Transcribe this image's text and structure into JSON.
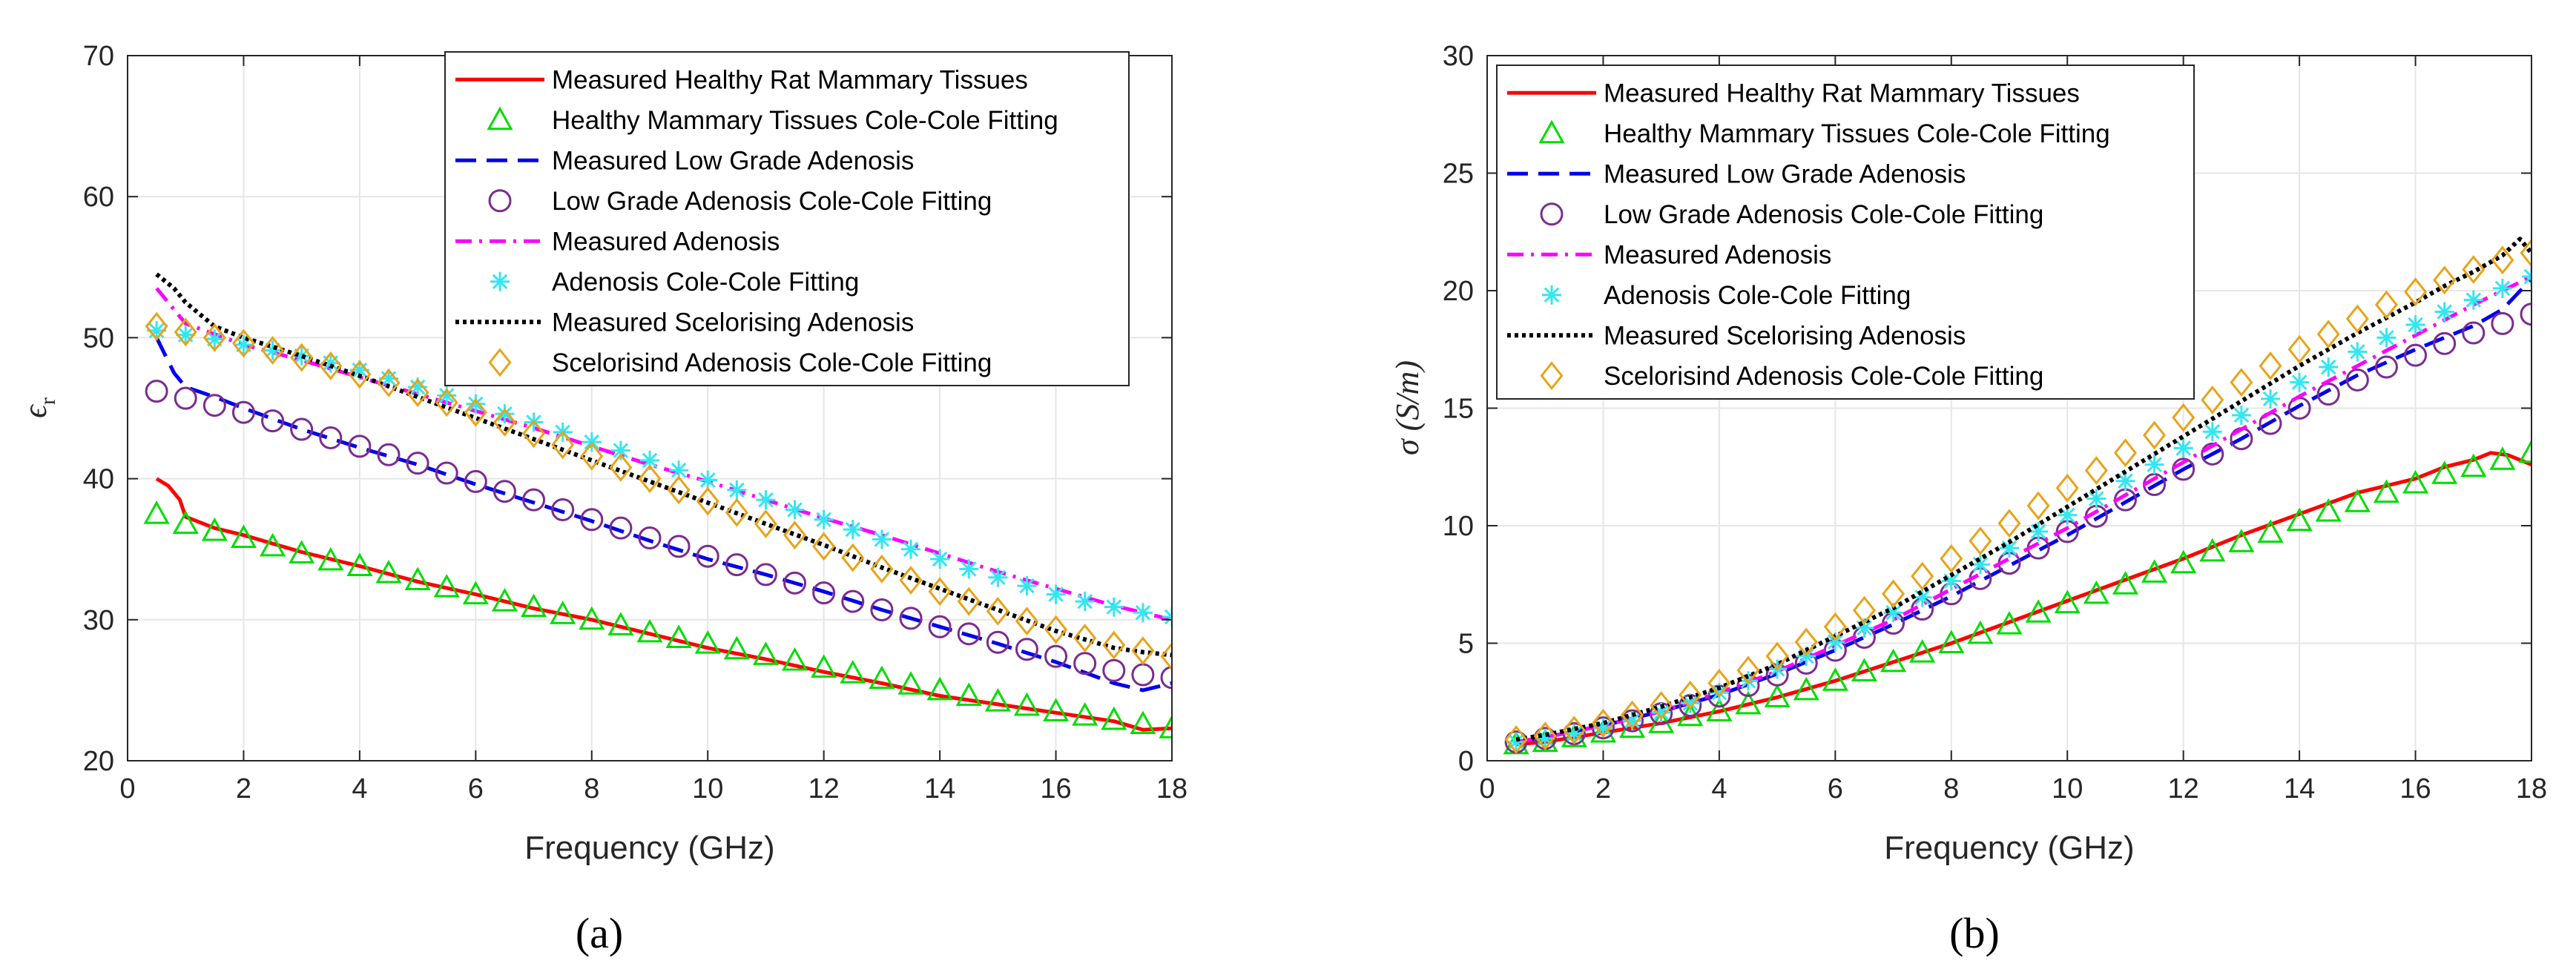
{
  "chart_data": [
    {
      "type": "line",
      "panel_label": "(a)",
      "xlabel": "Frequency (GHz)",
      "ylabel": "ϵ",
      "ylabel_sub": "r",
      "xlim": [
        0,
        18
      ],
      "ylim": [
        20,
        70
      ],
      "xticks": [
        0,
        2,
        4,
        6,
        8,
        10,
        12,
        14,
        16,
        18
      ],
      "yticks": [
        20,
        30,
        40,
        50,
        60,
        70
      ],
      "grid": true,
      "legend_position": "top-right",
      "series": [
        {
          "name": "Measured Healthy Rat Mammary Tissues",
          "style": "solid",
          "color": "#ff0000",
          "x": [
            0.5,
            0.7,
            0.9,
            1,
            1.5,
            2,
            3,
            4,
            5,
            6,
            7,
            8,
            9,
            10,
            11,
            12,
            13,
            14,
            15,
            16,
            17,
            17.5,
            18
          ],
          "values": [
            40,
            39.5,
            38.5,
            37.3,
            36.5,
            36,
            34.8,
            33.8,
            32.7,
            31.8,
            30.8,
            30,
            29,
            28,
            27.2,
            26.3,
            25.5,
            24.6,
            24,
            23.4,
            22.8,
            22.2,
            22.3
          ]
        },
        {
          "name": "Healthy Mammary Tissues Cole-Cole Fitting",
          "style": "triangle",
          "color": "#00dd00",
          "x": [
            0.5,
            1,
            1.5,
            2,
            2.5,
            3,
            3.5,
            4,
            4.5,
            5,
            5.5,
            6,
            6.5,
            7,
            7.5,
            8,
            8.5,
            9,
            9.5,
            10,
            10.5,
            11,
            11.5,
            12,
            12.5,
            13,
            13.5,
            14,
            14.5,
            15,
            15.5,
            16,
            16.5,
            17,
            17.5,
            18
          ],
          "values": [
            37.5,
            36.8,
            36.3,
            35.8,
            35.2,
            34.7,
            34.2,
            33.8,
            33.3,
            32.8,
            32.3,
            31.8,
            31.3,
            30.9,
            30.4,
            30,
            29.6,
            29.1,
            28.7,
            28.3,
            27.9,
            27.5,
            27.1,
            26.6,
            26.2,
            25.8,
            25.4,
            25,
            24.6,
            24.2,
            23.9,
            23.5,
            23.2,
            22.9,
            22.6,
            22.3
          ]
        },
        {
          "name": "Measured  Low Grade Adenosis",
          "style": "dashed",
          "color": "#0000ee",
          "x": [
            0.5,
            0.8,
            1,
            1.5,
            2,
            3,
            4,
            5,
            6,
            7,
            8,
            9,
            10,
            11,
            12,
            13,
            14,
            15,
            16,
            17,
            17.5,
            18
          ],
          "values": [
            50,
            47.5,
            46.5,
            45.8,
            45,
            43.5,
            42.2,
            41,
            39.6,
            38.3,
            37,
            35.6,
            34.3,
            33.2,
            32,
            30.7,
            29.5,
            28.3,
            27,
            25.5,
            25,
            25.5
          ]
        },
        {
          "name": "Low Grade Adenosis Cole-Cole Fitting",
          "style": "circle",
          "color": "#7b2c8f",
          "x": [
            0.5,
            1,
            1.5,
            2,
            2.5,
            3,
            3.5,
            4,
            4.5,
            5,
            5.5,
            6,
            6.5,
            7,
            7.5,
            8,
            8.5,
            9,
            9.5,
            10,
            10.5,
            11,
            11.5,
            12,
            12.5,
            13,
            13.5,
            14,
            14.5,
            15,
            15.5,
            16,
            16.5,
            17,
            17.5,
            18
          ],
          "values": [
            46.2,
            45.7,
            45.2,
            44.7,
            44.1,
            43.5,
            42.9,
            42.3,
            41.7,
            41.1,
            40.4,
            39.8,
            39.1,
            38.5,
            37.8,
            37.1,
            36.5,
            35.8,
            35.2,
            34.5,
            33.9,
            33.2,
            32.6,
            31.9,
            31.3,
            30.7,
            30.1,
            29.5,
            29,
            28.4,
            27.9,
            27.4,
            26.9,
            26.4,
            26.1,
            25.9
          ]
        },
        {
          "name": "Measured Adenosis",
          "style": "dashdot",
          "color": "#ff00ff",
          "x": [
            0.5,
            0.8,
            1,
            2,
            3,
            4,
            5,
            6,
            7,
            8,
            9,
            10,
            11,
            12,
            13,
            14,
            15,
            16,
            17,
            18
          ],
          "values": [
            53.5,
            52,
            51,
            49.5,
            48.4,
            47.2,
            46,
            44.8,
            43.6,
            42.3,
            41,
            39.8,
            38.5,
            37.2,
            36,
            34.7,
            33.4,
            32.2,
            31,
            30
          ]
        },
        {
          "name": "Adenosis Cole-Cole Fitting",
          "style": "asterisk",
          "color": "#33e6f0",
          "x": [
            0.5,
            1,
            1.5,
            2,
            2.5,
            3,
            3.5,
            4,
            4.5,
            5,
            5.5,
            6,
            6.5,
            7,
            7.5,
            8,
            8.5,
            9,
            9.5,
            10,
            10.5,
            11,
            11.5,
            12,
            12.5,
            13,
            13.5,
            14,
            14.5,
            15,
            15.5,
            16,
            16.5,
            17,
            17.5,
            18
          ],
          "values": [
            50.5,
            50.2,
            49.9,
            49.5,
            49.1,
            48.7,
            48.2,
            47.7,
            47.1,
            46.5,
            45.9,
            45.3,
            44.6,
            44,
            43.3,
            42.6,
            42,
            41.3,
            40.6,
            39.9,
            39.2,
            38.5,
            37.8,
            37.1,
            36.4,
            35.7,
            35,
            34.3,
            33.6,
            33,
            32.4,
            31.8,
            31.3,
            30.9,
            30.5,
            30.2
          ]
        },
        {
          "name": "Measured Scelorising Adenosis",
          "style": "dotted",
          "color": "#000000",
          "x": [
            0.5,
            0.8,
            1,
            1.5,
            2,
            3,
            4,
            5,
            6,
            7,
            8,
            9,
            10,
            11,
            12,
            13,
            14,
            15,
            16,
            17,
            17.5,
            18
          ],
          "values": [
            54.5,
            53.5,
            52.5,
            50.8,
            50,
            48.7,
            47.3,
            45.8,
            44.3,
            42.8,
            41.3,
            39.8,
            38.3,
            36.8,
            35.3,
            33.7,
            32.2,
            30.7,
            29.2,
            28,
            27.7,
            27.5
          ]
        },
        {
          "name": "Scelorisind Adenosis Cole-Cole Fitting",
          "style": "diamond",
          "color": "#e8a317",
          "x": [
            0.5,
            1,
            1.5,
            2,
            2.5,
            3,
            3.5,
            4,
            4.5,
            5,
            5.5,
            6,
            6.5,
            7,
            7.5,
            8,
            8.5,
            9,
            9.5,
            10,
            10.5,
            11,
            11.5,
            12,
            12.5,
            13,
            13.5,
            14,
            14.5,
            15,
            15.5,
            16,
            16.5,
            17,
            17.5,
            18
          ],
          "values": [
            50.8,
            50.4,
            50,
            49.6,
            49.1,
            48.6,
            48,
            47.4,
            46.8,
            46.1,
            45.4,
            44.7,
            44,
            43.2,
            42.4,
            41.6,
            40.8,
            40,
            39.2,
            38.4,
            37.6,
            36.8,
            36,
            35.2,
            34.4,
            33.6,
            32.8,
            32,
            31.3,
            30.6,
            29.9,
            29.3,
            28.7,
            28.2,
            27.8,
            27.4
          ]
        }
      ]
    },
    {
      "type": "line",
      "panel_label": "(b)",
      "xlabel": "Frequency (GHz)",
      "ylabel": "σ (S/m)",
      "xlim": [
        0,
        18
      ],
      "ylim": [
        0,
        30
      ],
      "xticks": [
        0,
        2,
        4,
        6,
        8,
        10,
        12,
        14,
        16,
        18
      ],
      "yticks": [
        0,
        5,
        10,
        15,
        20,
        25,
        30
      ],
      "grid": true,
      "legend_position": "top-left",
      "series": [
        {
          "name": "Measured Healthy Rat Mammary Tissues",
          "style": "solid",
          "color": "#ff0000",
          "x": [
            0.5,
            1,
            2,
            3,
            4,
            5,
            6,
            7,
            8,
            9,
            10,
            11,
            12,
            13,
            14,
            15,
            16,
            16.5,
            17,
            17.3,
            17.6,
            18
          ],
          "values": [
            0.7,
            0.8,
            1.2,
            1.6,
            2.1,
            2.7,
            3.4,
            4.2,
            5,
            5.9,
            6.8,
            7.7,
            8.6,
            9.6,
            10.5,
            11.4,
            12,
            12.5,
            12.8,
            13.1,
            13,
            12.6
          ]
        },
        {
          "name": "Healthy Mammary Tissues Cole-Cole Fitting",
          "style": "triangle",
          "color": "#00dd00",
          "x": [
            0.5,
            1,
            1.5,
            2,
            2.5,
            3,
            3.5,
            4,
            4.5,
            5,
            5.5,
            6,
            6.5,
            7,
            7.5,
            8,
            8.5,
            9,
            9.5,
            10,
            10.5,
            11,
            11.5,
            12,
            12.5,
            13,
            13.5,
            14,
            14.5,
            15,
            15.5,
            16,
            16.5,
            17,
            17.5,
            18
          ],
          "values": [
            0.7,
            0.8,
            1,
            1.2,
            1.4,
            1.6,
            1.9,
            2.1,
            2.4,
            2.7,
            3,
            3.4,
            3.8,
            4.2,
            4.6,
            5,
            5.4,
            5.8,
            6.3,
            6.7,
            7.1,
            7.5,
            8,
            8.4,
            8.9,
            9.3,
            9.7,
            10.2,
            10.6,
            11,
            11.4,
            11.8,
            12.2,
            12.5,
            12.8,
            13.1
          ]
        },
        {
          "name": "Measured  Low Grade Adenosis",
          "style": "dashed",
          "color": "#0000ee",
          "x": [
            0.5,
            1,
            2,
            3,
            4,
            5,
            6,
            7,
            8,
            9,
            10,
            11,
            12,
            13,
            14,
            15,
            16,
            16.5,
            17,
            17.5,
            18
          ],
          "values": [
            0.8,
            1,
            1.5,
            2.1,
            2.8,
            3.7,
            4.7,
            5.8,
            7,
            8.3,
            9.6,
            11,
            12.4,
            13.7,
            15.1,
            16.4,
            17.5,
            18,
            18.5,
            19.2,
            20.5
          ]
        },
        {
          "name": "Low Grade Adenosis Cole-Cole Fitting",
          "style": "circle",
          "color": "#7b2c8f",
          "x": [
            0.5,
            1,
            1.5,
            2,
            2.5,
            3,
            3.5,
            4,
            4.5,
            5,
            5.5,
            6,
            6.5,
            7,
            7.5,
            8,
            8.5,
            9,
            9.5,
            10,
            10.5,
            11,
            11.5,
            12,
            12.5,
            13,
            13.5,
            14,
            14.5,
            15,
            15.5,
            16,
            16.5,
            17,
            17.5,
            18
          ],
          "values": [
            0.8,
            0.95,
            1.15,
            1.4,
            1.7,
            2,
            2.35,
            2.75,
            3.2,
            3.65,
            4.15,
            4.7,
            5.25,
            5.85,
            6.45,
            7.1,
            7.75,
            8.4,
            9.05,
            9.75,
            10.4,
            11.1,
            11.75,
            12.4,
            13.05,
            13.7,
            14.35,
            15,
            15.6,
            16.2,
            16.75,
            17.25,
            17.75,
            18.2,
            18.6,
            19
          ]
        },
        {
          "name": "Measured Adenosis",
          "style": "dashdot",
          "color": "#ff00ff",
          "x": [
            0.5,
            1,
            2,
            3,
            4,
            5,
            6,
            7,
            8,
            9,
            10,
            11,
            12,
            13,
            14,
            15,
            16,
            17,
            17.5,
            18
          ],
          "values": [
            0.8,
            1,
            1.5,
            2.1,
            2.9,
            3.8,
            4.9,
            6,
            7.3,
            8.6,
            9.9,
            11.3,
            12.7,
            14.1,
            15.5,
            16.8,
            18.1,
            19.4,
            20,
            20.6
          ]
        },
        {
          "name": "Adenosis Cole-Cole Fitting",
          "style": "asterisk",
          "color": "#33e6f0",
          "x": [
            0.5,
            1,
            1.5,
            2,
            2.5,
            3,
            3.5,
            4,
            4.5,
            5,
            5.5,
            6,
            6.5,
            7,
            7.5,
            8,
            8.5,
            9,
            9.5,
            10,
            10.5,
            11,
            11.5,
            12,
            12.5,
            13,
            13.5,
            14,
            14.5,
            15,
            15.5,
            16,
            16.5,
            17,
            17.5,
            18
          ],
          "values": [
            0.8,
            0.95,
            1.15,
            1.4,
            1.7,
            2.05,
            2.45,
            2.9,
            3.4,
            3.9,
            4.45,
            5.05,
            5.65,
            6.3,
            6.95,
            7.65,
            8.35,
            9.05,
            9.75,
            10.45,
            11.15,
            11.9,
            12.6,
            13.3,
            14,
            14.7,
            15.4,
            16.1,
            16.75,
            17.4,
            18,
            18.55,
            19.1,
            19.6,
            20.1,
            20.6
          ]
        },
        {
          "name": "Measured Scelorising Adenosis",
          "style": "dotted",
          "color": "#000000",
          "x": [
            0.5,
            1,
            2,
            3,
            4,
            5,
            6,
            7,
            8,
            9,
            10,
            11,
            12,
            13,
            14,
            15,
            16,
            16.5,
            17,
            17.5,
            17.8,
            18
          ],
          "values": [
            0.9,
            1.1,
            1.6,
            2.3,
            3.1,
            4.1,
            5.3,
            6.5,
            7.9,
            9.3,
            10.8,
            12.3,
            13.8,
            15.3,
            16.8,
            18.2,
            19.5,
            20.2,
            20.8,
            21.5,
            22.2,
            21.6
          ]
        },
        {
          "name": "Scelorisind Adenosis Cole-Cole Fitting",
          "style": "diamond",
          "color": "#e8a317",
          "x": [
            0.5,
            1,
            1.5,
            2,
            2.5,
            3,
            3.5,
            4,
            4.5,
            5,
            5.5,
            6,
            6.5,
            7,
            7.5,
            8,
            8.5,
            9,
            9.5,
            10,
            10.5,
            11,
            11.5,
            12,
            12.5,
            13,
            13.5,
            14,
            14.5,
            15,
            15.5,
            16,
            16.5,
            17,
            17.5,
            18
          ],
          "values": [
            0.9,
            1.05,
            1.3,
            1.6,
            1.95,
            2.35,
            2.8,
            3.3,
            3.85,
            4.45,
            5.05,
            5.7,
            6.4,
            7.1,
            7.85,
            8.6,
            9.35,
            10.1,
            10.85,
            11.6,
            12.35,
            13.1,
            13.85,
            14.6,
            15.35,
            16.1,
            16.8,
            17.5,
            18.15,
            18.8,
            19.4,
            19.95,
            20.45,
            20.9,
            21.3,
            21.6
          ]
        }
      ]
    }
  ]
}
